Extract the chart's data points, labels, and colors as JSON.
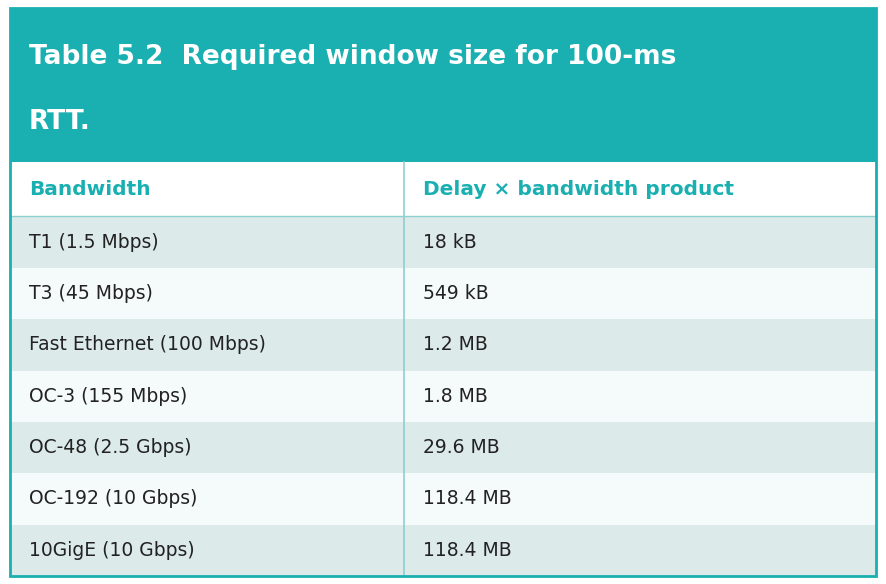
{
  "title_line1": "Table 5.2  Required window size for 100-ms",
  "title_line2": "RTT.",
  "header_col1": "Bandwidth",
  "header_col2": "Delay × bandwidth product",
  "rows": [
    [
      "T1 (1.5 Mbps)",
      "18 kB"
    ],
    [
      "T3 (45 Mbps)",
      "549 kB"
    ],
    [
      "Fast Ethernet (100 Mbps)",
      "1.2 MB"
    ],
    [
      "OC-3 (155 Mbps)",
      "1.8 MB"
    ],
    [
      "OC-48 (2.5 Gbps)",
      "29.6 MB"
    ],
    [
      "OC-192 (10 Gbps)",
      "118.4 MB"
    ],
    [
      "10GigE (10 Gbps)",
      "118.4 MB"
    ]
  ],
  "title_bg": "#1aafb0",
  "col_header_bg": "#ffffff",
  "row_colors": [
    "#ddeaea",
    "#f5fafa"
  ],
  "title_text_color": "#ffffff",
  "header_text_color": "#1aafb0",
  "row_text_color": "#222222",
  "divider_color": "#8ecfcf",
  "outer_border_color": "#1aafb0",
  "col_split": 0.455,
  "title_fontsize": 19,
  "header_fontsize": 14.5,
  "row_fontsize": 13.5,
  "fig_width": 8.86,
  "fig_height": 5.84,
  "dpi": 100
}
